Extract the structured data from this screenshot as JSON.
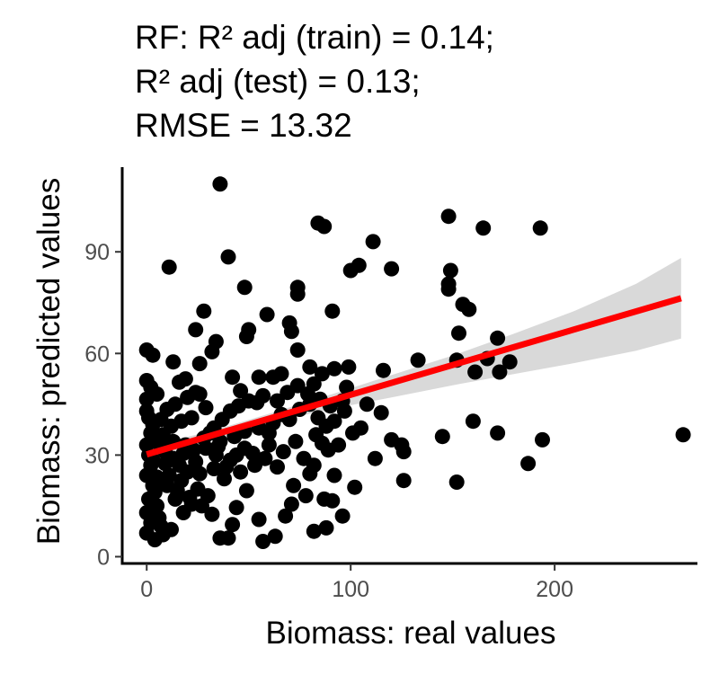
{
  "chart_data": {
    "type": "scatter",
    "title_lines": [
      "RF: R² adj (train) = 0.14;",
      "R² adj (test) = 0.13;",
      "RMSE = 13.32"
    ],
    "xlabel": "Biomass: real values",
    "ylabel": "Biomass: predicted values",
    "xlim": [
      -12,
      270
    ],
    "ylim": [
      -2,
      115
    ],
    "xticks": [
      0,
      100,
      200
    ],
    "yticks": [
      0,
      30,
      60,
      90
    ],
    "grid": false,
    "legend": "none",
    "point_color": "#000000",
    "fit_line": {
      "x0": 0,
      "y0": 30.2,
      "x1": 262,
      "y1": 76.3,
      "color": "#ff0000"
    },
    "confidence_band": {
      "color": "#d9d9d9",
      "x": [
        0,
        30,
        60,
        90,
        120,
        150,
        180,
        210,
        240,
        262
      ],
      "lower": [
        27.8,
        34.2,
        39.4,
        43.6,
        47.0,
        50.6,
        53.9,
        57.2,
        60.8,
        64.4
      ],
      "upper": [
        32.6,
        36.8,
        42.2,
        47.8,
        53.6,
        59.4,
        65.8,
        72.6,
        80.6,
        88.2
      ]
    },
    "points": [
      [
        36,
        110
      ],
      [
        84,
        98.5
      ],
      [
        87,
        97.5
      ],
      [
        148,
        100.5
      ],
      [
        165,
        97
      ],
      [
        193,
        97
      ],
      [
        111,
        93
      ],
      [
        40,
        88.5
      ],
      [
        104,
        86
      ],
      [
        100,
        84.5
      ],
      [
        120,
        85
      ],
      [
        11,
        85.5
      ],
      [
        149,
        84.5
      ],
      [
        148,
        80.5
      ],
      [
        148,
        79
      ],
      [
        74,
        79.5
      ],
      [
        74,
        77.5
      ],
      [
        48,
        79.5
      ],
      [
        155,
        74.5
      ],
      [
        158,
        73
      ],
      [
        28,
        72.5
      ],
      [
        59,
        71.5
      ],
      [
        91,
        72.5
      ],
      [
        70,
        69
      ],
      [
        24,
        67
      ],
      [
        50,
        67
      ],
      [
        71,
        66.5
      ],
      [
        49,
        65
      ],
      [
        34,
        63.5
      ],
      [
        153,
        66
      ],
      [
        172,
        64.5
      ],
      [
        32,
        60.5
      ],
      [
        74,
        61
      ],
      [
        0,
        61
      ],
      [
        3,
        59.5
      ],
      [
        152,
        58
      ],
      [
        167,
        58.5
      ],
      [
        133,
        58
      ],
      [
        178,
        57.5
      ],
      [
        80,
        56
      ],
      [
        92,
        55.5
      ],
      [
        99,
        56
      ],
      [
        13,
        57.5
      ],
      [
        26,
        57
      ],
      [
        161,
        54.5
      ],
      [
        173,
        54.5
      ],
      [
        116,
        55
      ],
      [
        86,
        54
      ],
      [
        62,
        53
      ],
      [
        55,
        53
      ],
      [
        66,
        54
      ],
      [
        42,
        53
      ],
      [
        0,
        52
      ],
      [
        2,
        50
      ],
      [
        16,
        51.5
      ],
      [
        19,
        52.5
      ],
      [
        46,
        49
      ],
      [
        82,
        51
      ],
      [
        98,
        50
      ],
      [
        24,
        48.5
      ],
      [
        5,
        48
      ],
      [
        0,
        46.5
      ],
      [
        0,
        43
      ],
      [
        1,
        41
      ],
      [
        3,
        39
      ],
      [
        2,
        36.5
      ],
      [
        0,
        33
      ],
      [
        1,
        30
      ],
      [
        2,
        27
      ],
      [
        0,
        24
      ],
      [
        3,
        21
      ],
      [
        1,
        17
      ],
      [
        0,
        13
      ],
      [
        2,
        10
      ],
      [
        0,
        7
      ],
      [
        4,
        5
      ],
      [
        8,
        6.5
      ],
      [
        6,
        11.5
      ],
      [
        12,
        8
      ],
      [
        18,
        13
      ],
      [
        22,
        15.5
      ],
      [
        14,
        17
      ],
      [
        25,
        20
      ],
      [
        30,
        18
      ],
      [
        10,
        21
      ],
      [
        17,
        22.5
      ],
      [
        20,
        25
      ],
      [
        26,
        24.5
      ],
      [
        33,
        26
      ],
      [
        13,
        29
      ],
      [
        18,
        30.5
      ],
      [
        23,
        31.5
      ],
      [
        29,
        32
      ],
      [
        34,
        30
      ],
      [
        41,
        28.5
      ],
      [
        44,
        30
      ],
      [
        48,
        32
      ],
      [
        52,
        30.5
      ],
      [
        58,
        29
      ],
      [
        36,
        34
      ],
      [
        43,
        35.5
      ],
      [
        48,
        37
      ],
      [
        55,
        38
      ],
      [
        62,
        39.5
      ],
      [
        66,
        42
      ],
      [
        70,
        40.5
      ],
      [
        75,
        43.5
      ],
      [
        80,
        45
      ],
      [
        84,
        41
      ],
      [
        88,
        38.5
      ],
      [
        92,
        40
      ],
      [
        97,
        43
      ],
      [
        105,
        38
      ],
      [
        112,
        29
      ],
      [
        125,
        33
      ],
      [
        145,
        35.5
      ],
      [
        160,
        40
      ],
      [
        172,
        36.5
      ],
      [
        187,
        27.5
      ],
      [
        194,
        34.5
      ],
      [
        263,
        36
      ],
      [
        126,
        22.5
      ],
      [
        152,
        22
      ],
      [
        102,
        20.5
      ],
      [
        91,
        16.5
      ],
      [
        78,
        18
      ],
      [
        87,
        17
      ],
      [
        71,
        15.5
      ],
      [
        68,
        12
      ],
      [
        63,
        6
      ],
      [
        55,
        11
      ],
      [
        57,
        4.5
      ],
      [
        40,
        5.5
      ],
      [
        36,
        5.5
      ],
      [
        44,
        14.5
      ],
      [
        38,
        23
      ],
      [
        46,
        25
      ],
      [
        53,
        27
      ],
      [
        60,
        33
      ],
      [
        67,
        31
      ],
      [
        73,
        34
      ],
      [
        77,
        29
      ],
      [
        82,
        27
      ],
      [
        89,
        31.5
      ],
      [
        94,
        33
      ],
      [
        101,
        36.5
      ],
      [
        33,
        38
      ],
      [
        37,
        40.5
      ],
      [
        41,
        43
      ],
      [
        45,
        44.5
      ],
      [
        50,
        46
      ],
      [
        54,
        45.5
      ],
      [
        57,
        47.5
      ],
      [
        64,
        46
      ],
      [
        69,
        48.5
      ],
      [
        74,
        50.5
      ],
      [
        79,
        48
      ],
      [
        85,
        46.5
      ],
      [
        90,
        44.5
      ],
      [
        96,
        46
      ],
      [
        108,
        45
      ],
      [
        115,
        42.5
      ],
      [
        29,
        44
      ],
      [
        22,
        41
      ],
      [
        17,
        40
      ],
      [
        12,
        38.5
      ],
      [
        8,
        36
      ],
      [
        6,
        33.5
      ],
      [
        9,
        27.5
      ],
      [
        11,
        24
      ],
      [
        15,
        19.5
      ],
      [
        21,
        17.5
      ],
      [
        27,
        15
      ],
      [
        32,
        12.5
      ],
      [
        7,
        40.5
      ],
      [
        10,
        43.5
      ],
      [
        14,
        45
      ],
      [
        20,
        47
      ],
      [
        26,
        48
      ],
      [
        31,
        36.5
      ],
      [
        35,
        32.5
      ],
      [
        39,
        26.5
      ],
      [
        4,
        19
      ],
      [
        5,
        15
      ],
      [
        7,
        9
      ],
      [
        3,
        28.5
      ],
      [
        5,
        23.5
      ],
      [
        9,
        31
      ],
      [
        13,
        34
      ],
      [
        16,
        27
      ],
      [
        19,
        33
      ],
      [
        24,
        28
      ],
      [
        28,
        35
      ],
      [
        60,
        36.5
      ],
      [
        64,
        26.5
      ],
      [
        83,
        36
      ],
      [
        86,
        33.5
      ],
      [
        120,
        34.5
      ],
      [
        126,
        31
      ],
      [
        72,
        21
      ],
      [
        80,
        24.5
      ],
      [
        92,
        24
      ],
      [
        96,
        12
      ],
      [
        88,
        8.5
      ],
      [
        82,
        7.5
      ],
      [
        42,
        9.5
      ],
      [
        49,
        19.5
      ]
    ]
  }
}
